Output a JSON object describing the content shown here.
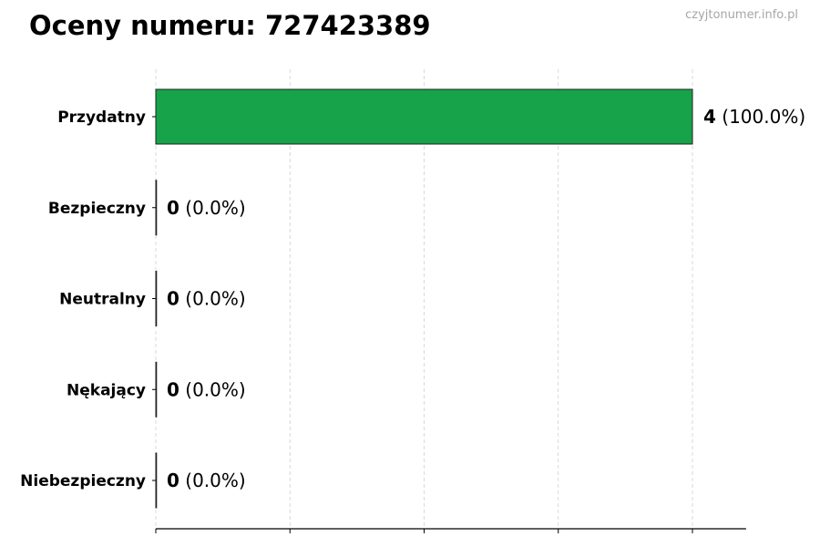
{
  "chart_data": {
    "type": "bar",
    "orientation": "horizontal",
    "title": "Oceny numeru: 727423389",
    "watermark": "czyjtonumer.info.pl",
    "categories": [
      "Przydatny",
      "Bezpieczny",
      "Neutralny",
      "Nękający",
      "Niebezpieczny"
    ],
    "values": [
      4,
      0,
      0,
      0,
      0
    ],
    "percent_labels": [
      "(100.0%)",
      "(0.0%)",
      "(0.0%)",
      "(0.0%)",
      "(0.0%)"
    ],
    "value_labels": [
      "4",
      "0",
      "0",
      "0",
      "0"
    ],
    "bar_color": "#17a34a",
    "xlim": [
      0,
      4.4
    ],
    "xticks": [
      0,
      1,
      2,
      3,
      4
    ],
    "xtick_labels_visible": false,
    "grid": "x-dashed",
    "xlabel": "",
    "ylabel": ""
  }
}
